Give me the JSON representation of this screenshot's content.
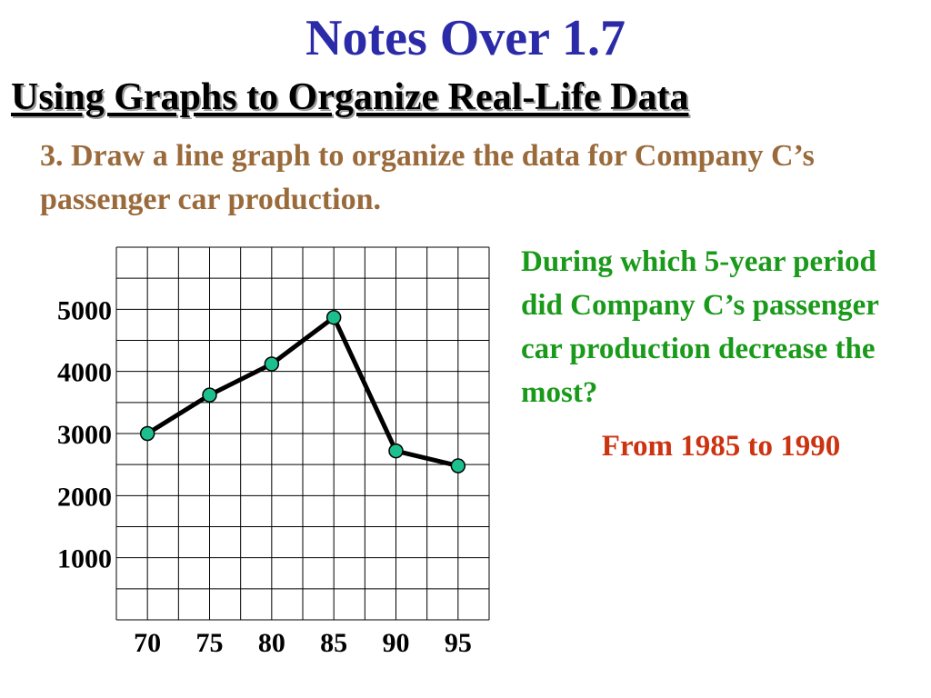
{
  "header": {
    "title": "Notes Over 1.7",
    "subtitle": "Using Graphs to Organize Real-Life Data"
  },
  "problem": {
    "text": "3. Draw a line graph to organize the data for Company C’s passenger car production."
  },
  "question": {
    "text": "During which 5-year period did Company C’s passenger car production decrease the most?",
    "answer": "From 1985 to 1990"
  },
  "chart_data": {
    "type": "line",
    "title": "",
    "xlabel": "",
    "ylabel": "",
    "x": [
      70,
      75,
      80,
      85,
      90,
      95
    ],
    "x_tick_labels": [
      "70",
      "75",
      "80",
      "85",
      "90",
      "95"
    ],
    "y_tick_values": [
      1000,
      2000,
      3000,
      4000,
      5000
    ],
    "y_tick_labels": [
      "1000",
      "2000",
      "3000",
      "4000",
      "5000"
    ],
    "series": [
      {
        "values": [
          3000,
          3620,
          4120,
          4870,
          2720,
          2480
        ]
      }
    ],
    "xlim": [
      67.5,
      97.5
    ],
    "ylim": [
      0,
      6000
    ],
    "grid": true,
    "colors": {
      "line": "#000000",
      "marker": "#1cc08e",
      "grid": "#000000"
    }
  }
}
